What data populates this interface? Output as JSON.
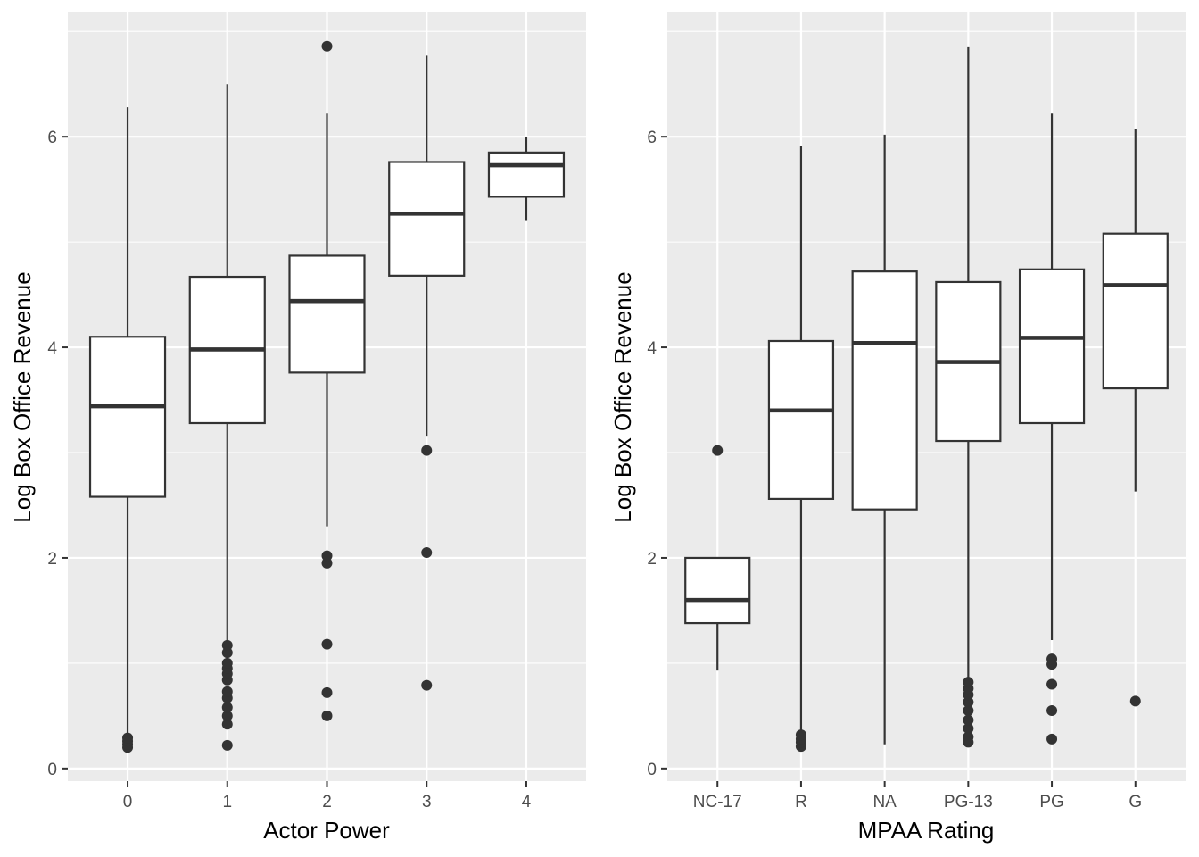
{
  "chart_data": [
    {
      "type": "boxplot",
      "xlabel": "Actor Power",
      "ylabel": "Log Box Office Revenue",
      "ylim": [
        -0.12,
        7.18
      ],
      "y_ticks": [
        "0",
        "2",
        "4",
        "6"
      ],
      "grid": true,
      "categories": [
        "0",
        "1",
        "2",
        "3",
        "4"
      ],
      "boxes": [
        {
          "category": "0",
          "whisker_low": 0.2,
          "q1": 2.58,
          "median": 3.44,
          "q3": 4.1,
          "whisker_high": 6.28,
          "outliers": [
            0.2,
            0.23,
            0.26,
            0.29
          ]
        },
        {
          "category": "1",
          "whisker_low": 1.18,
          "q1": 3.28,
          "median": 3.98,
          "q3": 4.67,
          "whisker_high": 6.5,
          "outliers": [
            0.22,
            0.42,
            0.5,
            0.58,
            0.67,
            0.73,
            0.84,
            0.9,
            0.95,
            1.0,
            1.1,
            1.17
          ]
        },
        {
          "category": "2",
          "whisker_low": 2.3,
          "q1": 3.76,
          "median": 4.44,
          "q3": 4.87,
          "whisker_high": 6.22,
          "outliers": [
            0.5,
            0.72,
            1.18,
            1.95,
            2.02,
            6.86
          ]
        },
        {
          "category": "3",
          "whisker_low": 3.16,
          "q1": 4.68,
          "median": 5.27,
          "q3": 5.76,
          "whisker_high": 6.77,
          "outliers": [
            0.79,
            2.05,
            3.02
          ]
        },
        {
          "category": "4",
          "whisker_low": 5.2,
          "q1": 5.43,
          "median": 5.73,
          "q3": 5.85,
          "whisker_high": 6.0,
          "outliers": []
        }
      ]
    },
    {
      "type": "boxplot",
      "xlabel": "MPAA Rating",
      "ylabel": "Log Box Office Revenue",
      "ylim": [
        -0.12,
        7.18
      ],
      "y_ticks": [
        "0",
        "2",
        "4",
        "6"
      ],
      "grid": true,
      "categories": [
        "NC-17",
        "R",
        "NA",
        "PG-13",
        "PG",
        "G"
      ],
      "boxes": [
        {
          "category": "NC-17",
          "whisker_low": 0.93,
          "q1": 1.38,
          "median": 1.6,
          "q3": 2.0,
          "whisker_high": 2.0,
          "outliers": [
            3.02
          ]
        },
        {
          "category": "R",
          "whisker_low": 0.33,
          "q1": 2.56,
          "median": 3.4,
          "q3": 4.06,
          "whisker_high": 5.91,
          "outliers": [
            0.21,
            0.25,
            0.28,
            0.32
          ]
        },
        {
          "category": "NA",
          "whisker_low": 0.23,
          "q1": 2.46,
          "median": 4.04,
          "q3": 4.72,
          "whisker_high": 6.02,
          "outliers": []
        },
        {
          "category": "PG-13",
          "whisker_low": 0.85,
          "q1": 3.11,
          "median": 3.86,
          "q3": 4.62,
          "whisker_high": 6.85,
          "outliers": [
            0.25,
            0.3,
            0.38,
            0.46,
            0.55,
            0.63,
            0.7,
            0.76,
            0.82
          ]
        },
        {
          "category": "PG",
          "whisker_low": 1.22,
          "q1": 3.28,
          "median": 4.09,
          "q3": 4.74,
          "whisker_high": 6.22,
          "outliers": [
            0.28,
            0.55,
            0.8,
            0.99,
            1.04
          ]
        },
        {
          "category": "G",
          "whisker_low": 2.63,
          "q1": 3.61,
          "median": 4.59,
          "q3": 5.08,
          "whisker_high": 6.07,
          "outliers": [
            0.64
          ]
        }
      ]
    }
  ]
}
